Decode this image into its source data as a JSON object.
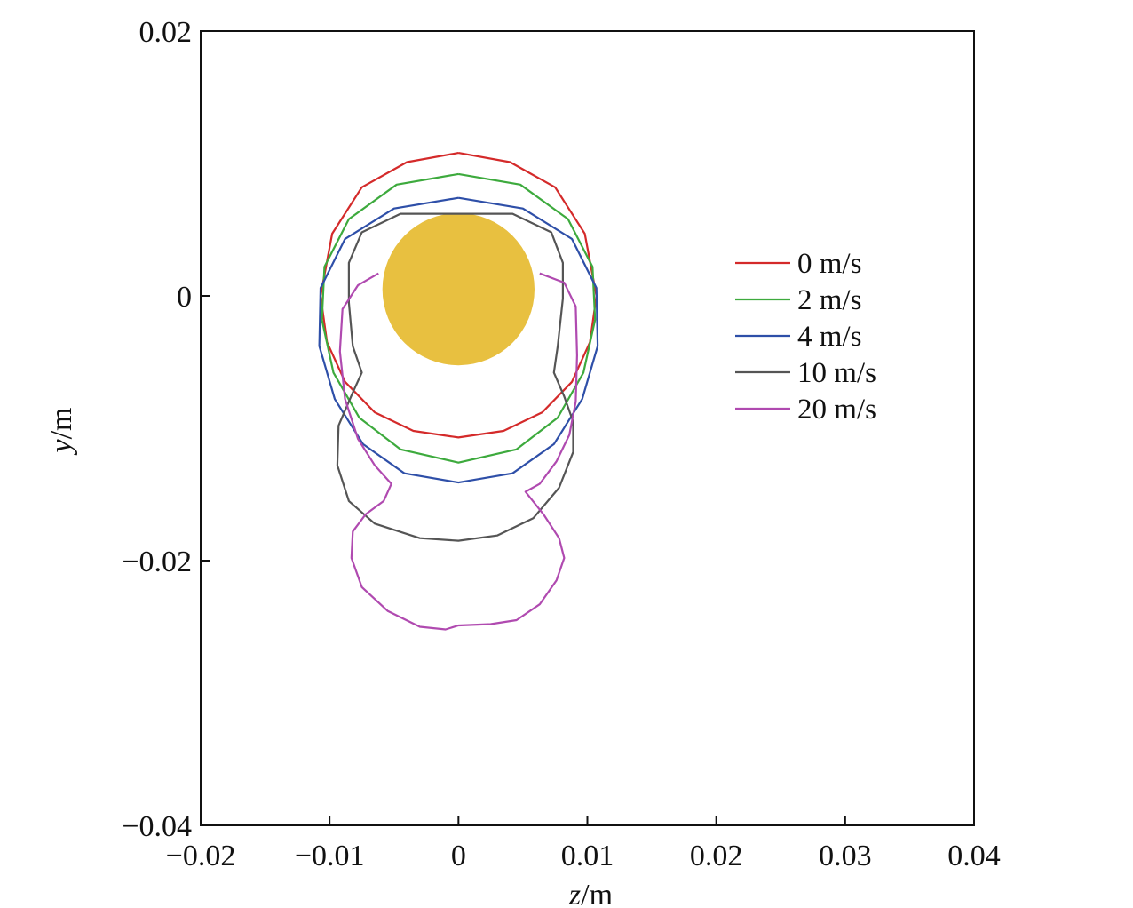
{
  "chart_data": {
    "type": "line",
    "title": "",
    "xlabel_italic": "z",
    "xlabel_unit": "/m",
    "ylabel_italic": "y",
    "ylabel_unit": "/m",
    "xlim": [
      -0.02,
      0.04
    ],
    "ylim": [
      -0.04,
      0.02
    ],
    "xticks": [
      -0.02,
      -0.01,
      0,
      0.01,
      0.02,
      0.03,
      0.04
    ],
    "xtick_labels": [
      "−0.02",
      "−0.01",
      "0",
      "0.01",
      "0.02",
      "0.03",
      "0.04"
    ],
    "yticks": [
      0.02,
      0,
      -0.02,
      -0.04
    ],
    "ytick_labels": [
      "0.02",
      "0",
      "−0.02",
      "−0.04"
    ],
    "grid": false,
    "legend_position": "right",
    "obstacle": {
      "shape": "circle",
      "center": [
        0.0,
        0.0005
      ],
      "radius": 0.0059,
      "color": "#E8C040"
    },
    "series": [
      {
        "name": "0 m/s",
        "color": "#D42A2A",
        "points": [
          [
            0.0,
            0.0108
          ],
          [
            0.004,
            0.0101
          ],
          [
            0.0075,
            0.0082
          ],
          [
            0.0098,
            0.0047
          ],
          [
            0.0107,
            0.0
          ],
          [
            0.0102,
            -0.0035
          ],
          [
            0.0088,
            -0.0065
          ],
          [
            0.0065,
            -0.0088
          ],
          [
            0.0035,
            -0.0102
          ],
          [
            0.0,
            -0.0107
          ],
          [
            -0.0035,
            -0.0102
          ],
          [
            -0.0065,
            -0.0088
          ],
          [
            -0.0088,
            -0.0065
          ],
          [
            -0.0102,
            -0.0035
          ],
          [
            -0.0107,
            0.0
          ],
          [
            -0.0098,
            0.0047
          ],
          [
            -0.0075,
            0.0082
          ],
          [
            -0.004,
            0.0101
          ],
          [
            0.0,
            0.0108
          ]
        ]
      },
      {
        "name": "2 m/s",
        "color": "#3DAA3D",
        "points": [
          [
            0.0,
            0.0092
          ],
          [
            0.0048,
            0.0084
          ],
          [
            0.0085,
            0.0058
          ],
          [
            0.0104,
            0.0022
          ],
          [
            0.0106,
            -0.0018
          ],
          [
            0.0097,
            -0.0058
          ],
          [
            0.0077,
            -0.0092
          ],
          [
            0.0045,
            -0.0116
          ],
          [
            0.0,
            -0.0126
          ],
          [
            -0.0045,
            -0.0116
          ],
          [
            -0.0077,
            -0.0092
          ],
          [
            -0.0097,
            -0.0058
          ],
          [
            -0.0106,
            -0.0018
          ],
          [
            -0.0104,
            0.0022
          ],
          [
            -0.0085,
            0.0058
          ],
          [
            -0.0048,
            0.0084
          ],
          [
            0.0,
            0.0092
          ]
        ]
      },
      {
        "name": "4 m/s",
        "color": "#2E4FA8",
        "points": [
          [
            0.0,
            0.0074
          ],
          [
            0.005,
            0.0066
          ],
          [
            0.0088,
            0.0043
          ],
          [
            0.0107,
            0.0006
          ],
          [
            0.0108,
            -0.0038
          ],
          [
            0.0096,
            -0.0078
          ],
          [
            0.0074,
            -0.0112
          ],
          [
            0.0042,
            -0.0134
          ],
          [
            0.0,
            -0.0141
          ],
          [
            -0.0042,
            -0.0134
          ],
          [
            -0.0074,
            -0.0112
          ],
          [
            -0.0096,
            -0.0078
          ],
          [
            -0.0108,
            -0.0038
          ],
          [
            -0.0107,
            0.0006
          ],
          [
            -0.0088,
            0.0043
          ],
          [
            -0.005,
            0.0066
          ],
          [
            0.0,
            0.0074
          ]
        ]
      },
      {
        "name": "10 m/s",
        "color": "#555555",
        "points": [
          [
            0.0,
            0.0062
          ],
          [
            0.0042,
            0.0062
          ],
          [
            0.0072,
            0.0048
          ],
          [
            0.0081,
            0.0025
          ],
          [
            0.0081,
            -0.0002
          ],
          [
            0.0077,
            -0.0038
          ],
          [
            0.0074,
            -0.0058
          ],
          [
            0.0082,
            -0.0076
          ],
          [
            0.0089,
            -0.0095
          ],
          [
            0.0089,
            -0.0118
          ],
          [
            0.0078,
            -0.0145
          ],
          [
            0.0058,
            -0.0168
          ],
          [
            0.003,
            -0.0181
          ],
          [
            0.0,
            -0.0185
          ],
          [
            -0.003,
            -0.0183
          ],
          [
            -0.0065,
            -0.0172
          ],
          [
            -0.0085,
            -0.0155
          ],
          [
            -0.0094,
            -0.0128
          ],
          [
            -0.0093,
            -0.0098
          ],
          [
            -0.0082,
            -0.0073
          ],
          [
            -0.0075,
            -0.0058
          ],
          [
            -0.0082,
            -0.0038
          ],
          [
            -0.0085,
            -0.0005
          ],
          [
            -0.0085,
            0.0025
          ],
          [
            -0.0075,
            0.0048
          ],
          [
            -0.0045,
            0.0062
          ],
          [
            0.0,
            0.0062
          ]
        ]
      },
      {
        "name": "20 m/s",
        "color": "#B04AB0",
        "points": [
          [
            0.0063,
            0.0017
          ],
          [
            0.0082,
            0.001
          ],
          [
            0.0091,
            -0.0008
          ],
          [
            0.0092,
            -0.0045
          ],
          [
            0.0091,
            -0.008
          ],
          [
            0.0086,
            -0.0105
          ],
          [
            0.0076,
            -0.0125
          ],
          [
            0.0063,
            -0.0142
          ],
          [
            0.0052,
            -0.0148
          ],
          [
            0.0066,
            -0.0165
          ],
          [
            0.0078,
            -0.0183
          ],
          [
            0.0082,
            -0.0198
          ],
          [
            0.0076,
            -0.0215
          ],
          [
            0.0063,
            -0.0233
          ],
          [
            0.0045,
            -0.0245
          ],
          [
            0.0025,
            -0.0248
          ],
          [
            0.0,
            -0.0249
          ],
          [
            -0.001,
            -0.0252
          ],
          [
            -0.003,
            -0.025
          ],
          [
            -0.0055,
            -0.0238
          ],
          [
            -0.0075,
            -0.022
          ],
          [
            -0.0083,
            -0.0198
          ],
          [
            -0.0082,
            -0.0178
          ],
          [
            -0.0072,
            -0.0165
          ],
          [
            -0.0058,
            -0.0155
          ],
          [
            -0.0052,
            -0.0142
          ],
          [
            -0.0065,
            -0.0128
          ],
          [
            -0.0078,
            -0.0108
          ],
          [
            -0.0088,
            -0.0078
          ],
          [
            -0.0092,
            -0.0042
          ],
          [
            -0.009,
            -0.001
          ],
          [
            -0.0078,
            0.0008
          ],
          [
            -0.0062,
            0.0017
          ]
        ]
      }
    ]
  }
}
